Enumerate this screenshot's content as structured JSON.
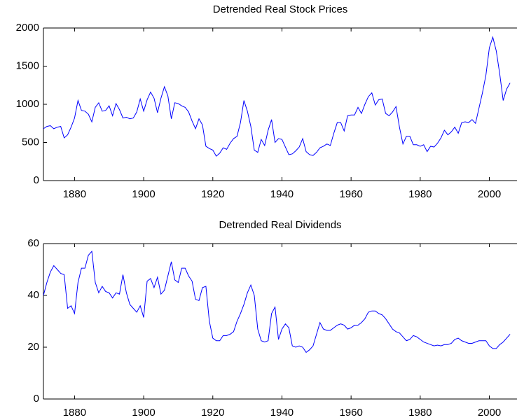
{
  "chart_data": [
    {
      "type": "line",
      "title": "Detrended Real Stock Prices",
      "x": [
        1871,
        1872,
        1873,
        1874,
        1875,
        1876,
        1877,
        1878,
        1879,
        1880,
        1881,
        1882,
        1883,
        1884,
        1885,
        1886,
        1887,
        1888,
        1889,
        1890,
        1891,
        1892,
        1893,
        1894,
        1895,
        1896,
        1897,
        1898,
        1899,
        1900,
        1901,
        1902,
        1903,
        1904,
        1905,
        1906,
        1907,
        1908,
        1909,
        1910,
        1911,
        1912,
        1913,
        1914,
        1915,
        1916,
        1917,
        1918,
        1919,
        1920,
        1921,
        1922,
        1923,
        1924,
        1925,
        1926,
        1927,
        1928,
        1929,
        1930,
        1931,
        1932,
        1933,
        1934,
        1935,
        1936,
        1937,
        1938,
        1939,
        1940,
        1941,
        1942,
        1943,
        1944,
        1945,
        1946,
        1947,
        1948,
        1949,
        1950,
        1951,
        1952,
        1953,
        1954,
        1955,
        1956,
        1957,
        1958,
        1959,
        1960,
        1961,
        1962,
        1963,
        1964,
        1965,
        1966,
        1967,
        1968,
        1969,
        1970,
        1971,
        1972,
        1973,
        1974,
        1975,
        1976,
        1977,
        1978,
        1979,
        1980,
        1981,
        1982,
        1983,
        1984,
        1985,
        1986,
        1987,
        1988,
        1989,
        1990,
        1991,
        1992,
        1993,
        1994,
        1995,
        1996,
        1997,
        1998,
        1999,
        2000,
        2001,
        2002,
        2003,
        2004,
        2005,
        2006
      ],
      "series": [
        {
          "color": "#0000ff",
          "values": [
            680,
            710,
            720,
            680,
            700,
            710,
            560,
            600,
            700,
            820,
            1050,
            920,
            910,
            870,
            770,
            960,
            1020,
            910,
            920,
            980,
            850,
            1010,
            930,
            820,
            830,
            810,
            820,
            900,
            1070,
            910,
            1060,
            1160,
            1080,
            890,
            1080,
            1230,
            1110,
            810,
            1020,
            1010,
            980,
            960,
            900,
            780,
            680,
            810,
            730,
            450,
            420,
            400,
            320,
            360,
            430,
            410,
            490,
            550,
            580,
            760,
            1050,
            910,
            710,
            400,
            370,
            540,
            460,
            660,
            800,
            500,
            550,
            540,
            440,
            340,
            350,
            390,
            440,
            550,
            380,
            340,
            330,
            370,
            430,
            450,
            480,
            460,
            620,
            760,
            760,
            650,
            850,
            860,
            860,
            960,
            880,
            1000,
            1100,
            1150,
            990,
            1060,
            1070,
            880,
            850,
            900,
            970,
            700,
            480,
            580,
            580,
            470,
            470,
            450,
            470,
            380,
            450,
            440,
            490,
            560,
            660,
            600,
            640,
            700,
            620,
            760,
            770,
            760,
            800,
            750,
            950,
            1150,
            1380,
            1740,
            1880,
            1700,
            1400,
            1050,
            1200,
            1280
          ]
        }
      ],
      "xlim": [
        1871,
        2008
      ],
      "xticks": [
        1880,
        1900,
        1920,
        1940,
        1960,
        1980,
        2000
      ],
      "ylim": [
        0,
        2000
      ],
      "yticks": [
        0,
        500,
        1000,
        1500,
        2000
      ]
    },
    {
      "type": "line",
      "title": "Detrended Real Dividends",
      "x": [
        1871,
        1872,
        1873,
        1874,
        1875,
        1876,
        1877,
        1878,
        1879,
        1880,
        1881,
        1882,
        1883,
        1884,
        1885,
        1886,
        1887,
        1888,
        1889,
        1890,
        1891,
        1892,
        1893,
        1894,
        1895,
        1896,
        1897,
        1898,
        1899,
        1900,
        1901,
        1902,
        1903,
        1904,
        1905,
        1906,
        1907,
        1908,
        1909,
        1910,
        1911,
        1912,
        1913,
        1914,
        1915,
        1916,
        1917,
        1918,
        1919,
        1920,
        1921,
        1922,
        1923,
        1924,
        1925,
        1926,
        1927,
        1928,
        1929,
        1930,
        1931,
        1932,
        1933,
        1934,
        1935,
        1936,
        1937,
        1938,
        1939,
        1940,
        1941,
        1942,
        1943,
        1944,
        1945,
        1946,
        1947,
        1948,
        1949,
        1950,
        1951,
        1952,
        1953,
        1954,
        1955,
        1956,
        1957,
        1958,
        1959,
        1960,
        1961,
        1962,
        1963,
        1964,
        1965,
        1966,
        1967,
        1968,
        1969,
        1970,
        1971,
        1972,
        1973,
        1974,
        1975,
        1976,
        1977,
        1978,
        1979,
        1980,
        1981,
        1982,
        1983,
        1984,
        1985,
        1986,
        1987,
        1988,
        1989,
        1990,
        1991,
        1992,
        1993,
        1994,
        1995,
        1996,
        1997,
        1998,
        1999,
        2000,
        2001,
        2002,
        2003,
        2004,
        2005,
        2006
      ],
      "series": [
        {
          "color": "#0000ff",
          "values": [
            40,
            45,
            49,
            51.5,
            50,
            48.5,
            48,
            35,
            36,
            33,
            45,
            50.5,
            50.5,
            55.5,
            57,
            45,
            41,
            43.5,
            41.5,
            41,
            39,
            41,
            40.5,
            48,
            41,
            36.5,
            35,
            33.5,
            36,
            31.5,
            45.5,
            46.5,
            43,
            47,
            40.5,
            42,
            47.5,
            53,
            46,
            45,
            50.5,
            50.5,
            47.5,
            45.5,
            38.5,
            38,
            43,
            43.5,
            30,
            23.5,
            22.5,
            22.5,
            24.5,
            24.5,
            25,
            26,
            30,
            33,
            36.5,
            41,
            44,
            40,
            27,
            22.5,
            22,
            22.5,
            33,
            35.5,
            23,
            27,
            29,
            27.5,
            20.5,
            20,
            20.5,
            20,
            18,
            19,
            20.5,
            25,
            29.5,
            27,
            26.5,
            26.5,
            27.5,
            28.5,
            29,
            28.5,
            27,
            27.5,
            28.5,
            28.5,
            29.5,
            31,
            33.5,
            34,
            34,
            33,
            32.5,
            31,
            29,
            27,
            26,
            25.5,
            24,
            22.5,
            23,
            24.5,
            24,
            23,
            22,
            21.5,
            21,
            20.5,
            20.8,
            20.5,
            21,
            21,
            21.5,
            23,
            23.5,
            22.5,
            22,
            21.5,
            21.5,
            22,
            22.5,
            22.5,
            22.5,
            20.5,
            19.5,
            19.5,
            21,
            22,
            23.5,
            25
          ]
        }
      ],
      "xlim": [
        1871,
        2008
      ],
      "xticks": [
        1880,
        1900,
        1920,
        1940,
        1960,
        1980,
        2000
      ],
      "ylim": [
        0,
        60
      ],
      "yticks": [
        0,
        20,
        40,
        60
      ]
    }
  ]
}
